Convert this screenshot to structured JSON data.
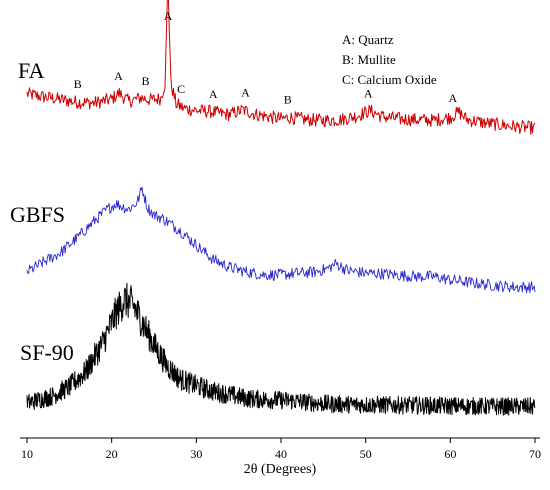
{
  "chart_data": {
    "type": "line",
    "xlabel": "2θ (Degrees)",
    "ylabel": "",
    "xlim": [
      10,
      70
    ],
    "x_ticks": [
      "10",
      "20",
      "30",
      "40",
      "50",
      "60",
      "70"
    ],
    "grid": false,
    "legend": {
      "placement": "top-right",
      "entries": [
        "A: Quartz",
        "B: Mullite",
        "C: Calcium Oxide"
      ]
    },
    "series": [
      {
        "name": "FA",
        "color": "#cc0000",
        "noise": 0.32,
        "points": [
          [
            10,
            0.82
          ],
          [
            12,
            0.74
          ],
          [
            14,
            0.67
          ],
          [
            16,
            0.6
          ],
          [
            18,
            0.58
          ],
          [
            20,
            0.68
          ],
          [
            20.9,
            0.84
          ],
          [
            22,
            0.62
          ],
          [
            23.5,
            0.72
          ],
          [
            24.5,
            0.66
          ],
          [
            25.8,
            0.7
          ],
          [
            26.3,
            1.1
          ],
          [
            26.65,
            3.8
          ],
          [
            27.0,
            1.1
          ],
          [
            27.6,
            0.56
          ],
          [
            28.5,
            0.44
          ],
          [
            30,
            0.38
          ],
          [
            31.5,
            0.36
          ],
          [
            33,
            0.3
          ],
          [
            34,
            0.28
          ],
          [
            35.5,
            0.4
          ],
          [
            37,
            0.28
          ],
          [
            38.5,
            0.22
          ],
          [
            40,
            0.16
          ],
          [
            41,
            0.2
          ],
          [
            43,
            0.14
          ],
          [
            45,
            0.12
          ],
          [
            47,
            0.14
          ],
          [
            49,
            0.24
          ],
          [
            50.5,
            0.38
          ],
          [
            52,
            0.22
          ],
          [
            54,
            0.16
          ],
          [
            56,
            0.14
          ],
          [
            58,
            0.12
          ],
          [
            60,
            0.2
          ],
          [
            61,
            0.34
          ],
          [
            62,
            0.14
          ],
          [
            64,
            0.06
          ],
          [
            66,
            0.0
          ],
          [
            68,
            -0.05
          ],
          [
            70,
            -0.08
          ]
        ]
      },
      {
        "name": "GBFS",
        "color": "#2a2acc",
        "noise": 0.13,
        "points": [
          [
            10,
            0.0
          ],
          [
            12,
            0.18
          ],
          [
            14,
            0.35
          ],
          [
            16,
            0.62
          ],
          [
            18,
            0.92
          ],
          [
            19.5,
            1.12
          ],
          [
            20.5,
            1.22
          ],
          [
            22,
            1.12
          ],
          [
            23,
            1.24
          ],
          [
            23.6,
            1.5
          ],
          [
            24.2,
            1.16
          ],
          [
            25,
            1.02
          ],
          [
            26,
            0.96
          ],
          [
            28,
            0.75
          ],
          [
            30,
            0.48
          ],
          [
            32,
            0.22
          ],
          [
            34,
            0.08
          ],
          [
            36,
            0.0
          ],
          [
            38,
            -0.05
          ],
          [
            40,
            -0.05
          ],
          [
            42,
            -0.02
          ],
          [
            44,
            0.0
          ],
          [
            45.5,
            0.06
          ],
          [
            46.5,
            0.15
          ],
          [
            48,
            0.02
          ],
          [
            50,
            -0.02
          ],
          [
            52,
            -0.03
          ],
          [
            54,
            -0.06
          ],
          [
            56,
            -0.08
          ],
          [
            58,
            -0.08
          ],
          [
            60,
            -0.14
          ],
          [
            62,
            -0.18
          ],
          [
            64,
            -0.22
          ],
          [
            66,
            -0.25
          ],
          [
            68,
            -0.27
          ],
          [
            70,
            -0.27
          ]
        ]
      },
      {
        "name": "SF-90",
        "color": "#000000",
        "noise": 0.32,
        "points": [
          [
            10,
            0.0
          ],
          [
            13,
            0.12
          ],
          [
            15,
            0.28
          ],
          [
            17,
            0.55
          ],
          [
            19,
            1.05
          ],
          [
            20.5,
            1.55
          ],
          [
            21.5,
            1.78
          ],
          [
            22.5,
            1.7
          ],
          [
            23.5,
            1.42
          ],
          [
            25,
            1.0
          ],
          [
            26.5,
            0.65
          ],
          [
            28,
            0.42
          ],
          [
            30,
            0.3
          ],
          [
            32,
            0.2
          ],
          [
            34,
            0.14
          ],
          [
            36,
            0.08
          ],
          [
            38,
            0.06
          ],
          [
            40,
            0.05
          ],
          [
            42,
            0.03
          ],
          [
            44,
            0.0
          ],
          [
            46,
            -0.02
          ],
          [
            50,
            -0.03
          ],
          [
            55,
            -0.04
          ],
          [
            60,
            -0.05
          ],
          [
            65,
            -0.06
          ],
          [
            70,
            -0.06
          ]
        ]
      }
    ],
    "series_labels": [
      "FA",
      "GBFS",
      "SF-90"
    ],
    "annotations": [
      {
        "text": "B",
        "x": 16,
        "series": "FA"
      },
      {
        "text": "A",
        "x": 20.8,
        "series": "FA"
      },
      {
        "text": "B",
        "x": 24,
        "series": "FA"
      },
      {
        "text": "A",
        "x": 26.65,
        "series": "FA"
      },
      {
        "text": "C",
        "x": 28.2,
        "series": "FA"
      },
      {
        "text": "A",
        "x": 32,
        "series": "FA"
      },
      {
        "text": "A",
        "x": 35.8,
        "series": "FA"
      },
      {
        "text": "B",
        "x": 40.8,
        "series": "FA"
      },
      {
        "text": "A",
        "x": 50.3,
        "series": "FA"
      },
      {
        "text": "A",
        "x": 60.3,
        "series": "FA"
      }
    ]
  }
}
